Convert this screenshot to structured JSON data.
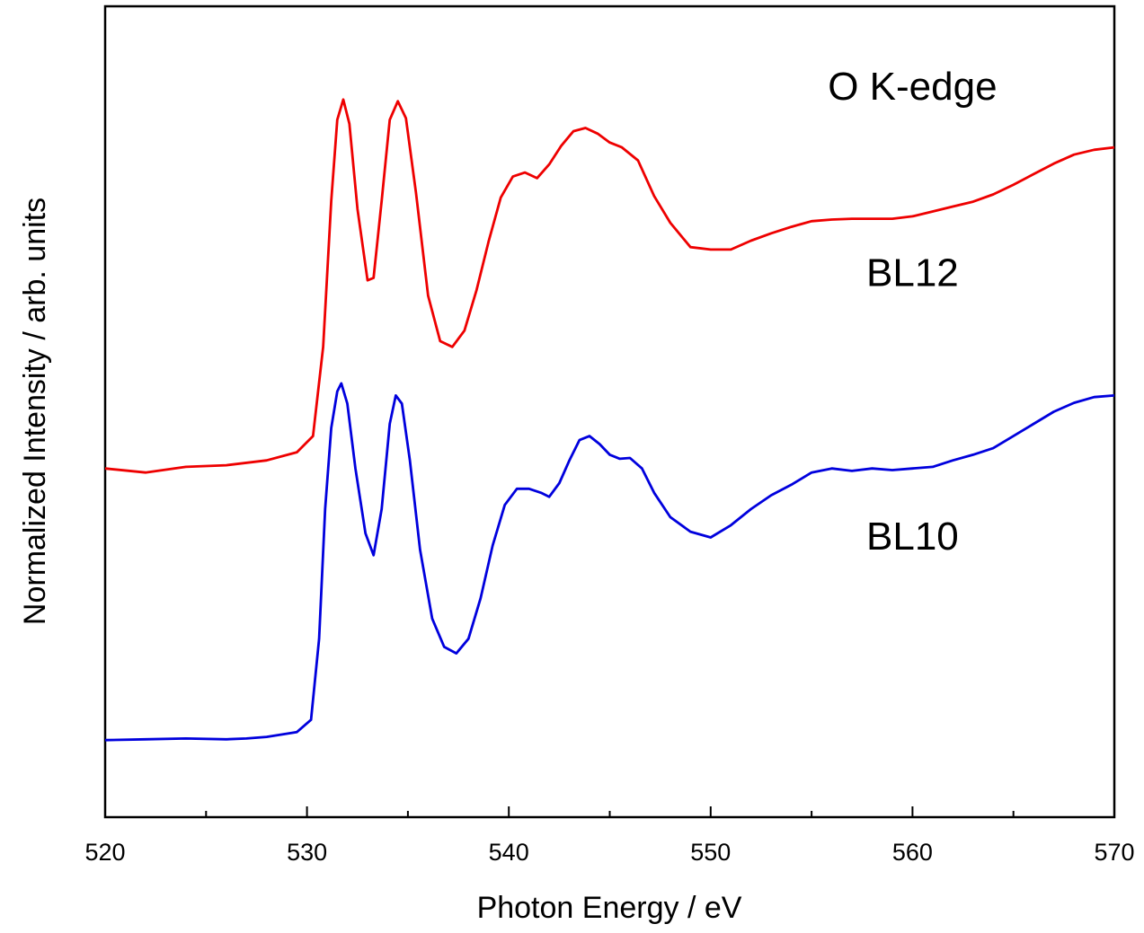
{
  "chart_data": {
    "type": "line",
    "xlabel": "Photon Energy / eV",
    "ylabel": "Normalized Intensity / arb. units",
    "xlim": [
      520,
      570
    ],
    "ylim": [
      0,
      1
    ],
    "x_ticks": [
      "520",
      "530",
      "540",
      "550",
      "560",
      "570"
    ],
    "y_ticks_shown": false,
    "grid": false,
    "annotations": [
      {
        "text": "O K-edge",
        "x": 560,
        "y": 0.885
      },
      {
        "text": "BL12",
        "x": 560,
        "y": 0.655
      },
      {
        "text": "BL10",
        "x": 560,
        "y": 0.33
      }
    ],
    "series": [
      {
        "name": "BL12",
        "color": "#ee0000",
        "x": [
          520,
          522,
          524,
          526,
          528,
          529.5,
          530.3,
          530.8,
          531.2,
          531.5,
          531.8,
          532.1,
          532.5,
          533,
          533.3,
          533.7,
          534.1,
          534.5,
          534.9,
          535.4,
          536,
          536.6,
          537.2,
          537.8,
          538.4,
          539,
          539.6,
          540.2,
          540.8,
          541.4,
          542,
          542.6,
          543.2,
          543.8,
          544.4,
          545,
          545.6,
          546.4,
          547.2,
          548,
          549,
          550,
          551,
          552,
          553,
          554,
          555,
          556,
          557,
          558,
          559,
          560,
          561,
          562,
          563,
          564,
          565,
          566,
          567,
          568,
          569,
          570
        ],
        "y": [
          0.43,
          0.425,
          0.432,
          0.434,
          0.44,
          0.45,
          0.47,
          0.58,
          0.76,
          0.86,
          0.885,
          0.855,
          0.75,
          0.662,
          0.665,
          0.76,
          0.86,
          0.883,
          0.862,
          0.77,
          0.643,
          0.587,
          0.58,
          0.6,
          0.65,
          0.71,
          0.764,
          0.79,
          0.795,
          0.788,
          0.805,
          0.828,
          0.846,
          0.85,
          0.843,
          0.832,
          0.826,
          0.81,
          0.766,
          0.733,
          0.703,
          0.7,
          0.7,
          0.711,
          0.72,
          0.728,
          0.735,
          0.737,
          0.738,
          0.738,
          0.738,
          0.741,
          0.747,
          0.753,
          0.759,
          0.768,
          0.78,
          0.793,
          0.806,
          0.817,
          0.823,
          0.826
        ]
      },
      {
        "name": "BL10",
        "color": "#0000dd",
        "x": [
          520,
          522,
          524,
          526,
          527,
          528,
          529.5,
          530.2,
          530.6,
          530.9,
          531.2,
          531.5,
          531.7,
          532,
          532.4,
          532.9,
          533.3,
          533.7,
          534.1,
          534.4,
          534.7,
          535.1,
          535.6,
          536.2,
          536.8,
          537.4,
          538,
          538.6,
          539.2,
          539.8,
          540.4,
          541,
          541.6,
          542,
          542.5,
          543,
          543.5,
          544,
          544.5,
          545,
          545.5,
          546,
          546.6,
          547.2,
          548,
          549,
          550,
          551,
          552,
          553,
          554,
          555,
          556,
          557,
          558,
          559,
          560,
          561,
          562,
          563,
          564,
          565,
          566,
          567,
          568,
          569,
          570
        ],
        "y": [
          0.095,
          0.096,
          0.097,
          0.096,
          0.097,
          0.099,
          0.105,
          0.12,
          0.22,
          0.38,
          0.48,
          0.525,
          0.535,
          0.51,
          0.43,
          0.35,
          0.323,
          0.38,
          0.485,
          0.52,
          0.51,
          0.44,
          0.33,
          0.245,
          0.21,
          0.202,
          0.22,
          0.27,
          0.335,
          0.385,
          0.405,
          0.405,
          0.4,
          0.395,
          0.412,
          0.44,
          0.465,
          0.47,
          0.46,
          0.447,
          0.442,
          0.443,
          0.43,
          0.4,
          0.37,
          0.352,
          0.345,
          0.36,
          0.38,
          0.397,
          0.41,
          0.425,
          0.43,
          0.427,
          0.43,
          0.428,
          0.43,
          0.432,
          0.44,
          0.447,
          0.455,
          0.47,
          0.485,
          0.5,
          0.511,
          0.518,
          0.52
        ]
      }
    ]
  }
}
